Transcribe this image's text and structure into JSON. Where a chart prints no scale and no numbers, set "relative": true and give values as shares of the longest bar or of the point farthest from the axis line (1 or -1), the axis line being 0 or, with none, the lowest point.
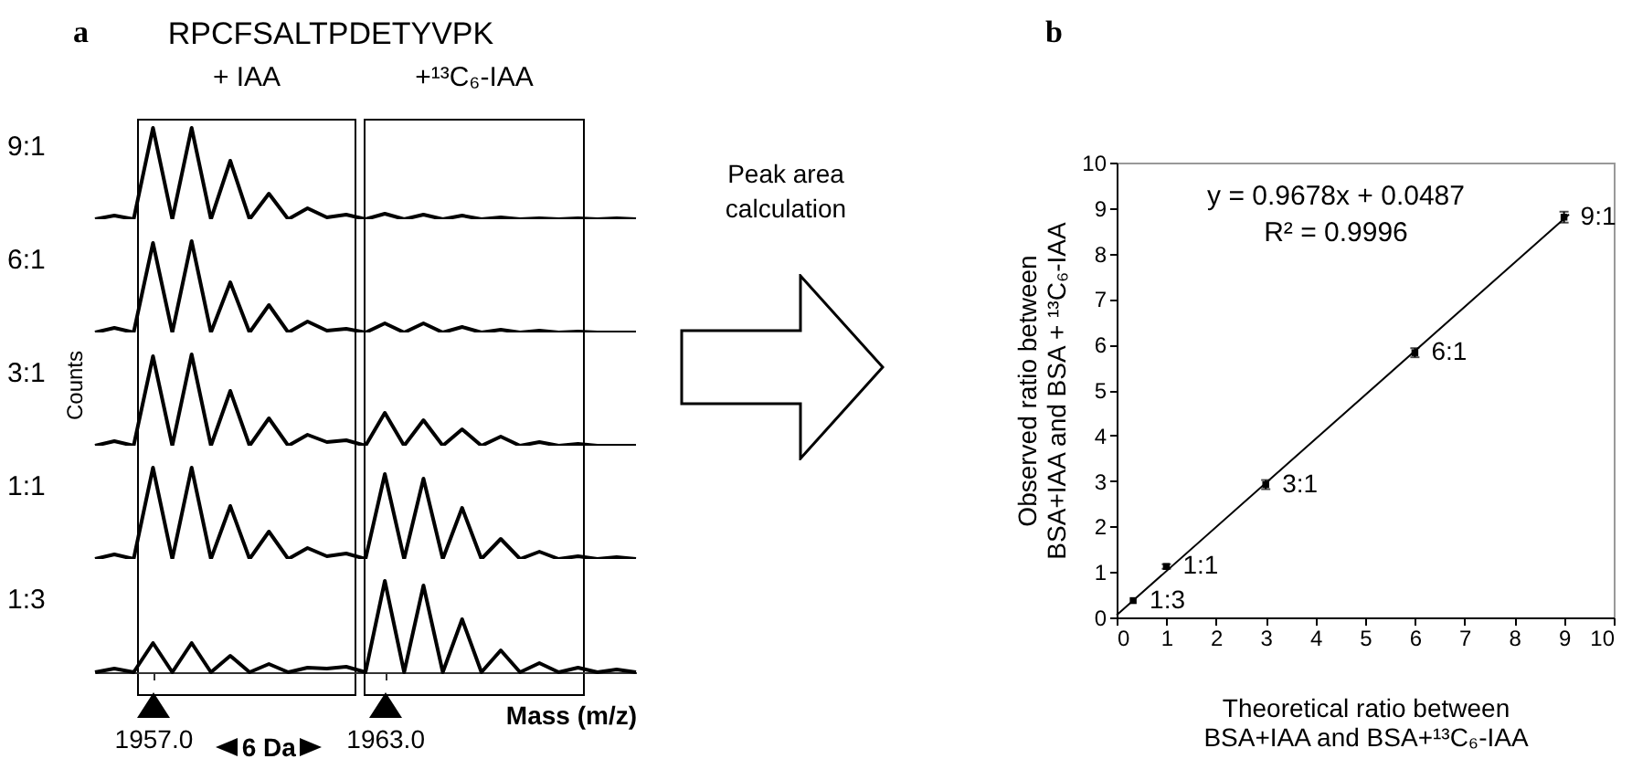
{
  "chart_data": [
    {
      "type": "line",
      "relative": true,
      "title": "RPCFSALTPDETYVPK",
      "ylabel": "9:1",
      "annotations": [
        "a",
        "+ IAA",
        "+¹³C₆-IAA"
      ],
      "categories": [
        null,
        null,
        null,
        null,
        null,
        null,
        null,
        null,
        null,
        null,
        null,
        null,
        null,
        null,
        null,
        null,
        null,
        null,
        null,
        null,
        null,
        null,
        null,
        null,
        null,
        null,
        null,
        null,
        null
      ],
      "series": [
        {
          "color": "#000000",
          "values": [
            0,
            0.04,
            0,
            1,
            0,
            1,
            0,
            0.64,
            0,
            0.28,
            0,
            0.12,
            0.02,
            0.05,
            0,
            0.06,
            0,
            0.05,
            0,
            0.04,
            0,
            0.02,
            0,
            0.01,
            0,
            0.01,
            0,
            0.01,
            0
          ]
        }
      ]
    },
    {
      "type": "line",
      "relative": true,
      "ylabel": "6:1",
      "categories": [
        null,
        null,
        null,
        null,
        null,
        null,
        null,
        null,
        null,
        null,
        null,
        null,
        null,
        null,
        null,
        null,
        null,
        null,
        null,
        null,
        null,
        null,
        null,
        null,
        null,
        null,
        null,
        null,
        null
      ],
      "series": [
        {
          "color": "#000000",
          "values": [
            0,
            0.05,
            0,
            0.98,
            0,
            1,
            0,
            0.55,
            0,
            0.3,
            0,
            0.12,
            0.02,
            0.04,
            0,
            0.1,
            0,
            0.1,
            0,
            0.06,
            0,
            0.03,
            0,
            0.02,
            0,
            0.01,
            0,
            0,
            0
          ]
        }
      ]
    },
    {
      "type": "line",
      "relative": true,
      "ylabel": "3:1",
      "annotations": [
        "Counts"
      ],
      "categories": [
        null,
        null,
        null,
        null,
        null,
        null,
        null,
        null,
        null,
        null,
        null,
        null,
        null,
        null,
        null,
        null,
        null,
        null,
        null,
        null,
        null,
        null,
        null,
        null,
        null,
        null,
        null,
        null,
        null
      ],
      "series": [
        {
          "color": "#000000",
          "values": [
            0,
            0.05,
            0,
            0.98,
            0,
            1,
            0,
            0.6,
            0,
            0.3,
            0,
            0.12,
            0.04,
            0.06,
            0,
            0.36,
            0,
            0.28,
            0,
            0.18,
            0,
            0.1,
            0,
            0.04,
            0,
            0.02,
            0,
            0,
            0
          ]
        }
      ]
    },
    {
      "type": "line",
      "relative": true,
      "ylabel": "1:1",
      "categories": [
        null,
        null,
        null,
        null,
        null,
        null,
        null,
        null,
        null,
        null,
        null,
        null,
        null,
        null,
        null,
        null,
        null,
        null,
        null,
        null,
        null,
        null,
        null,
        null,
        null,
        null,
        null,
        null,
        null
      ],
      "series": [
        {
          "color": "#000000",
          "values": [
            0,
            0.05,
            0,
            1,
            0,
            1,
            0,
            0.58,
            0,
            0.3,
            0,
            0.12,
            0.03,
            0.06,
            0,
            0.93,
            0,
            0.88,
            0,
            0.56,
            0,
            0.22,
            0,
            0.08,
            0,
            0.03,
            0,
            0.02,
            0
          ]
        }
      ]
    },
    {
      "type": "line",
      "relative": true,
      "ylabel": "1:3",
      "xlabel": "Mass (m/z)",
      "annotations": [
        "6 Da"
      ],
      "categories": [
        null,
        null,
        null,
        "1957.0",
        null,
        null,
        null,
        null,
        null,
        null,
        null,
        null,
        null,
        null,
        null,
        "1963.0",
        null,
        null,
        null,
        null,
        null,
        null,
        null,
        null,
        null,
        null,
        null,
        null,
        null
      ],
      "series": [
        {
          "color": "#000000",
          "values": [
            0,
            0.04,
            0,
            0.32,
            0,
            0.32,
            0,
            0.18,
            0,
            0.09,
            0,
            0.05,
            0.04,
            0.06,
            0,
            1,
            0,
            0.95,
            0,
            0.58,
            0,
            0.24,
            0,
            0.1,
            0,
            0.05,
            0,
            0.03,
            0
          ]
        }
      ]
    },
    {
      "type": "scatter",
      "xlabel": "Theoretical ratio between BSA+IAA and BSA+¹³C₆-IAA",
      "ylabel": "Observed ratio between BSA+IAA and BSA + ¹³C₆-IAA",
      "annotations": [
        "b",
        "Peak area calculation",
        "y = 0.9678x + 0.0487",
        "R² = 0.9996"
      ],
      "xlim": [
        0,
        10
      ],
      "ylim": [
        0,
        10
      ],
      "xticks": [
        0,
        1,
        2,
        3,
        4,
        5,
        6,
        7,
        8,
        9,
        10
      ],
      "yticks": [
        0,
        1,
        2,
        3,
        4,
        5,
        6,
        7,
        8,
        9,
        10
      ],
      "series": [
        {
          "color": "#000000",
          "marker": "square",
          "x": [
            0.333,
            1,
            3,
            6,
            9
          ],
          "values": [
            0.37,
            1.12,
            2.92,
            5.82,
            8.8
          ],
          "errors": [
            null,
            0.05,
            0.1,
            0.1,
            0.12
          ],
          "value_labels": [
            "1:3",
            "1:1",
            "3:1",
            "6:1",
            "9:1"
          ]
        },
        {
          "type": "line",
          "color": "#000000",
          "marker": "none",
          "x": [
            0,
            9.1
          ],
          "values": [
            0.05,
            8.86
          ]
        }
      ]
    }
  ]
}
